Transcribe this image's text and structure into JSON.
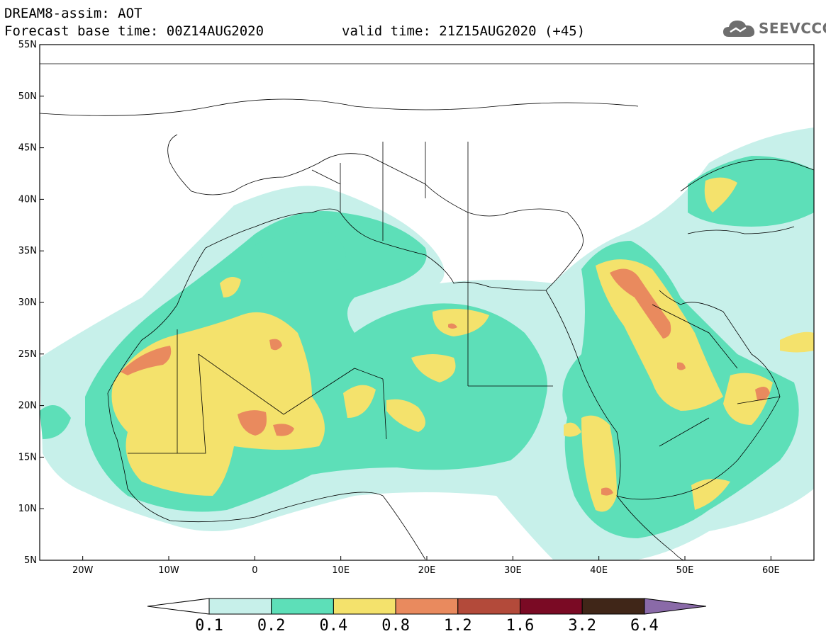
{
  "header": {
    "title": "DREAM8-assim: AOT",
    "forecast": "Forecast base time: 00Z14AUG2020",
    "valid": "valid time: 21Z15AUG2020 (+45)"
  },
  "logo": {
    "text": "SEEVCCC",
    "icon": "cloud-icon"
  },
  "map": {
    "lat_labels": [
      "55N",
      "50N",
      "45N",
      "40N",
      "35N",
      "30N",
      "25N",
      "20N",
      "15N",
      "10N",
      "5N"
    ],
    "lon_labels": [
      "20W",
      "10W",
      "0",
      "10E",
      "20E",
      "30E",
      "40E",
      "50E",
      "60E"
    ],
    "extent": {
      "lon": [
        -25,
        65
      ],
      "lat": [
        5,
        55
      ]
    }
  },
  "colorbar": {
    "labels": [
      "0.1",
      "0.2",
      "0.4",
      "0.8",
      "1.2",
      "1.6",
      "3.2",
      "6.4"
    ],
    "colors": [
      "#c7f0ea",
      "#5ddfb8",
      "#f4e26c",
      "#e98a5e",
      "#b34a3a",
      "#7a0a24",
      "#402618",
      "#8a6aa8"
    ],
    "under_color": "#ffffff"
  }
}
